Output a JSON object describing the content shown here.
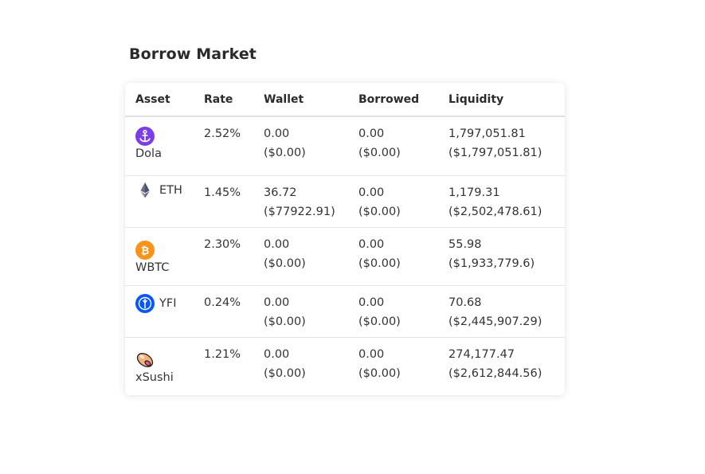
{
  "title": "Borrow Market",
  "table": {
    "headers": {
      "asset": "Asset",
      "rate": "Rate",
      "wallet": "Wallet",
      "borrowed": "Borrowed",
      "liquidity": "Liquidity"
    },
    "rows": [
      {
        "asset": "Dola",
        "icon": "dola-anchor-icon",
        "icon_color": "#7b3fe4",
        "rate": "2.52%",
        "wallet": "0.00",
        "wallet_usd": "($0.00)",
        "borrowed": "0.00",
        "borrowed_usd": "($0.00)",
        "liquidity": "1,797,051.81",
        "liquidity_usd": "($1,797,051.81)"
      },
      {
        "asset": "ETH",
        "icon": "ethereum-icon",
        "icon_color": "#627eea",
        "rate": "1.45%",
        "wallet": "36.72",
        "wallet_usd": "($77922.91)",
        "borrowed": "0.00",
        "borrowed_usd": "($0.00)",
        "liquidity": "1,179.31",
        "liquidity_usd": "($2,502,478.61)"
      },
      {
        "asset": "WBTC",
        "icon": "bitcoin-icon",
        "icon_color": "#f7931a",
        "rate": "2.30%",
        "wallet": "0.00",
        "wallet_usd": "($0.00)",
        "borrowed": "0.00",
        "borrowed_usd": "($0.00)",
        "liquidity": "55.98",
        "liquidity_usd": "($1,933,779.6)"
      },
      {
        "asset": "YFI",
        "icon": "yearn-icon",
        "icon_color": "#0657f9",
        "rate": "0.24%",
        "wallet": "0.00",
        "wallet_usd": "($0.00)",
        "borrowed": "0.00",
        "borrowed_usd": "($0.00)",
        "liquidity": "70.68",
        "liquidity_usd": "($2,445,907.29)"
      },
      {
        "asset": "xSushi",
        "icon": "sushi-icon",
        "icon_color": "#fa52a0",
        "rate": "1.21%",
        "wallet": "0.00",
        "wallet_usd": "($0.00)",
        "borrowed": "0.00",
        "borrowed_usd": "($0.00)",
        "liquidity": "274,177.47",
        "liquidity_usd": "($2,612,844.56)"
      }
    ]
  }
}
